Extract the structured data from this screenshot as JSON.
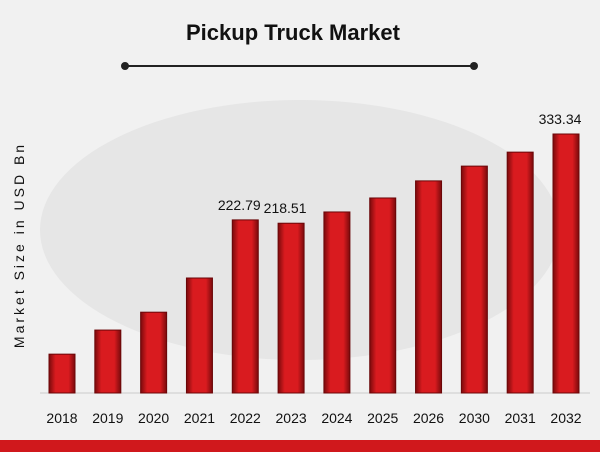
{
  "chart_data": {
    "type": "bar",
    "title": "Pickup Truck Market",
    "y_label": "Market Size in USD Bn",
    "categories": [
      "2018",
      "2019",
      "2020",
      "2021",
      "2022",
      "2023",
      "2024",
      "2025",
      "2026",
      "2030",
      "2031",
      "2032"
    ],
    "values": [
      50,
      81,
      104,
      148,
      222.79,
      218.51,
      233,
      251,
      273,
      292,
      310,
      333.34
    ],
    "value_labels": [
      null,
      null,
      null,
      null,
      "222.79",
      "218.51",
      null,
      null,
      null,
      null,
      null,
      "333.34"
    ],
    "color": "#d0181c"
  }
}
